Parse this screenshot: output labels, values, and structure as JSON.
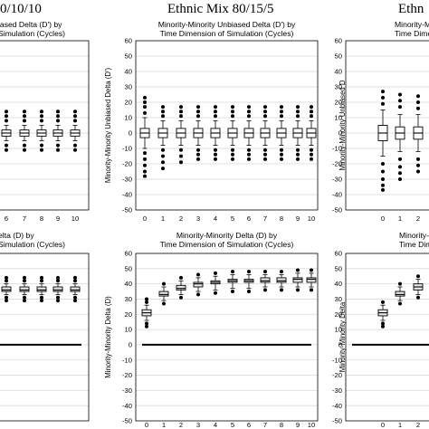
{
  "section_titles": [
    "0/10/10",
    "Ethnic Mix 80/15/5",
    "Ethn"
  ],
  "chart_data": [
    {
      "type": "box",
      "title_lines": [
        "iased Delta (D') by",
        "Simulation (Cycles)"
      ],
      "ylabel": "",
      "ylim": [
        -50,
        60
      ],
      "yticks": [],
      "categories": [
        "6",
        "7",
        "8",
        "9",
        "10"
      ],
      "reference_line": null,
      "grid": true,
      "boxes": [
        {
          "x": "6",
          "q1": -2,
          "median": 0,
          "q3": 2,
          "whisker_low": -5,
          "whisker_high": 5,
          "outliers_low": [
            -8,
            -11
          ],
          "outliers_high": [
            8,
            11,
            14
          ]
        },
        {
          "x": "7",
          "q1": -2,
          "median": 0,
          "q3": 2,
          "whisker_low": -5,
          "whisker_high": 5,
          "outliers_low": [
            -8,
            -11
          ],
          "outliers_high": [
            8,
            11,
            14
          ]
        },
        {
          "x": "8",
          "q1": -2,
          "median": 0,
          "q3": 2,
          "whisker_low": -5,
          "whisker_high": 5,
          "outliers_low": [
            -8,
            -11
          ],
          "outliers_high": [
            8,
            11,
            14
          ]
        },
        {
          "x": "9",
          "q1": -2,
          "median": 0,
          "q3": 2,
          "whisker_low": -5,
          "whisker_high": 5,
          "outliers_low": [
            -8,
            -11
          ],
          "outliers_high": [
            8,
            11,
            14
          ]
        },
        {
          "x": "10",
          "q1": -2,
          "median": 0,
          "q3": 2,
          "whisker_low": -5,
          "whisker_high": 5,
          "outliers_low": [
            -8,
            -11
          ],
          "outliers_high": [
            8,
            11,
            14
          ]
        }
      ]
    },
    {
      "type": "box",
      "title_lines": [
        "Minority-Minority Unbiased Delta (D') by",
        "Time Dimension of Simulation (Cycles)"
      ],
      "ylabel": "Minority-Minority Unbiased Delta (D')",
      "ylim": [
        -50,
        60
      ],
      "yticks": [
        60,
        50,
        40,
        30,
        20,
        10,
        0,
        -10,
        -20,
        -30,
        -40,
        -50
      ],
      "categories": [
        "0",
        "1",
        "2",
        "3",
        "4",
        "5",
        "6",
        "7",
        "8",
        "9",
        "10"
      ],
      "reference_line": null,
      "grid": true,
      "boxes": [
        {
          "x": "0",
          "q1": -3,
          "median": 0,
          "q3": 3,
          "whisker_low": -10,
          "whisker_high": 10,
          "outliers_low": [
            -13,
            -17,
            -21,
            -25,
            -28
          ],
          "outliers_high": [
            13,
            17,
            20,
            23
          ]
        },
        {
          "x": "1",
          "q1": -3,
          "median": 0,
          "q3": 3,
          "whisker_low": -8,
          "whisker_high": 8,
          "outliers_low": [
            -11,
            -15,
            -19,
            -23
          ],
          "outliers_high": [
            11,
            14,
            17
          ]
        },
        {
          "x": "2",
          "q1": -3,
          "median": 0,
          "q3": 3,
          "whisker_low": -8,
          "whisker_high": 8,
          "outliers_low": [
            -11,
            -15,
            -19
          ],
          "outliers_high": [
            11,
            14,
            17
          ]
        },
        {
          "x": "3",
          "q1": -3,
          "median": 0,
          "q3": 3,
          "whisker_low": -8,
          "whisker_high": 8,
          "outliers_low": [
            -11,
            -14,
            -17
          ],
          "outliers_high": [
            11,
            14,
            17
          ]
        },
        {
          "x": "4",
          "q1": -3,
          "median": 0,
          "q3": 3,
          "whisker_low": -8,
          "whisker_high": 8,
          "outliers_low": [
            -11,
            -14,
            -17
          ],
          "outliers_high": [
            11,
            14,
            17
          ]
        },
        {
          "x": "5",
          "q1": -3,
          "median": 0,
          "q3": 3,
          "whisker_low": -8,
          "whisker_high": 8,
          "outliers_low": [
            -11,
            -14,
            -17
          ],
          "outliers_high": [
            11,
            14,
            17
          ]
        },
        {
          "x": "6",
          "q1": -3,
          "median": 0,
          "q3": 3,
          "whisker_low": -8,
          "whisker_high": 8,
          "outliers_low": [
            -11,
            -14,
            -17
          ],
          "outliers_high": [
            11,
            14,
            17
          ]
        },
        {
          "x": "7",
          "q1": -3,
          "median": 0,
          "q3": 3,
          "whisker_low": -8,
          "whisker_high": 8,
          "outliers_low": [
            -11,
            -14,
            -17
          ],
          "outliers_high": [
            11,
            14,
            17
          ]
        },
        {
          "x": "8",
          "q1": -3,
          "median": 0,
          "q3": 3,
          "whisker_low": -8,
          "whisker_high": 8,
          "outliers_low": [
            -11,
            -14,
            -17
          ],
          "outliers_high": [
            11,
            14,
            17
          ]
        },
        {
          "x": "9",
          "q1": -3,
          "median": 0,
          "q3": 3,
          "whisker_low": -8,
          "whisker_high": 8,
          "outliers_low": [
            -11,
            -14,
            -17
          ],
          "outliers_high": [
            11,
            14,
            17
          ]
        },
        {
          "x": "10",
          "q1": -3,
          "median": 0,
          "q3": 3,
          "whisker_low": -8,
          "whisker_high": 8,
          "outliers_low": [
            -11,
            -14,
            -17
          ],
          "outliers_high": [
            11,
            14,
            17
          ]
        }
      ]
    },
    {
      "type": "box",
      "title_lines": [
        "Minority-Minority Unbias",
        "Time Dimension of Simu"
      ],
      "ylabel": "Minority-Minority Unbiased D",
      "ylim": [
        -50,
        60
      ],
      "yticks": [
        60,
        50,
        40,
        30,
        20,
        10,
        0,
        -10,
        -20,
        -30,
        -40,
        -50
      ],
      "categories": [
        "0",
        "1",
        "2"
      ],
      "reference_line": null,
      "grid": true,
      "boxes": [
        {
          "x": "0",
          "q1": -5,
          "median": 0,
          "q3": 5,
          "whisker_low": -15,
          "whisker_high": 15,
          "outliers_low": [
            -20,
            -25,
            -30,
            -34,
            -37
          ],
          "outliers_high": [
            19,
            23,
            27
          ]
        },
        {
          "x": "1",
          "q1": -4,
          "median": 0,
          "q3": 4,
          "whisker_low": -12,
          "whisker_high": 12,
          "outliers_low": [
            -17,
            -22,
            -26,
            -30
          ],
          "outliers_high": [
            17,
            21,
            25
          ]
        },
        {
          "x": "2",
          "q1": -4,
          "median": 0,
          "q3": 4,
          "whisker_low": -12,
          "whisker_high": 12,
          "outliers_low": [
            -17,
            -21,
            -25
          ],
          "outliers_high": [
            16,
            20,
            24
          ]
        }
      ]
    },
    {
      "type": "box",
      "title_lines": [
        "elta (D) by",
        "Simulation (Cycles)"
      ],
      "ylabel": "",
      "ylim": [
        -50,
        60
      ],
      "yticks": [],
      "categories": [],
      "reference_line": 0,
      "grid": true,
      "boxes": [
        {
          "x": "6",
          "q1": 35,
          "median": 36,
          "q3": 38,
          "whisker_low": 33,
          "whisker_high": 40,
          "outliers_low": [
            31,
            29
          ],
          "outliers_high": [
            42,
            44
          ]
        },
        {
          "x": "7",
          "q1": 35,
          "median": 36,
          "q3": 38,
          "whisker_low": 33,
          "whisker_high": 40,
          "outliers_low": [
            31,
            29
          ],
          "outliers_high": [
            42,
            44
          ]
        },
        {
          "x": "8",
          "q1": 35,
          "median": 36,
          "q3": 38,
          "whisker_low": 33,
          "whisker_high": 40,
          "outliers_low": [
            31,
            29
          ],
          "outliers_high": [
            42,
            44
          ]
        },
        {
          "x": "9",
          "q1": 35,
          "median": 36,
          "q3": 38,
          "whisker_low": 33,
          "whisker_high": 40,
          "outliers_low": [
            31,
            29
          ],
          "outliers_high": [
            42,
            44
          ]
        },
        {
          "x": "10",
          "q1": 35,
          "median": 36,
          "q3": 38,
          "whisker_low": 33,
          "whisker_high": 40,
          "outliers_low": [
            31,
            29
          ],
          "outliers_high": [
            42,
            44
          ]
        }
      ]
    },
    {
      "type": "box",
      "title_lines": [
        "Minority-Minority Delta (D) by",
        "Time Dimension of Simulation (Cycles)"
      ],
      "ylabel": "Minority-Minority Delta (D)",
      "ylim": [
        -50,
        60
      ],
      "yticks": [
        60,
        50,
        40,
        30,
        20,
        10,
        0,
        -10,
        -20,
        -30,
        -40,
        -50
      ],
      "categories": [
        "0",
        "1",
        "2",
        "3",
        "4",
        "5",
        "6",
        "7",
        "8",
        "9",
        "10"
      ],
      "reference_line": 0,
      "grid": true,
      "boxes": [
        {
          "x": "0",
          "q1": 19,
          "median": 21,
          "q3": 23,
          "whisker_low": 16,
          "whisker_high": 26,
          "outliers_low": [
            14,
            12
          ],
          "outliers_high": [
            28,
            30
          ]
        },
        {
          "x": "1",
          "q1": 32,
          "median": 33,
          "q3": 35,
          "whisker_low": 29,
          "whisker_high": 38,
          "outliers_low": [
            27
          ],
          "outliers_high": [
            40
          ]
        },
        {
          "x": "2",
          "q1": 36,
          "median": 37,
          "q3": 39,
          "whisker_low": 33,
          "whisker_high": 42,
          "outliers_low": [
            31
          ],
          "outliers_high": [
            44
          ]
        },
        {
          "x": "3",
          "q1": 38,
          "median": 40,
          "q3": 41,
          "whisker_low": 35,
          "whisker_high": 44,
          "outliers_low": [
            33
          ],
          "outliers_high": [
            46
          ]
        },
        {
          "x": "4",
          "q1": 40,
          "median": 41,
          "q3": 42,
          "whisker_low": 36,
          "whisker_high": 45,
          "outliers_low": [
            34
          ],
          "outliers_high": [
            47
          ]
        },
        {
          "x": "5",
          "q1": 41,
          "median": 42,
          "q3": 43,
          "whisker_low": 37,
          "whisker_high": 46,
          "outliers_low": [
            35
          ],
          "outliers_high": [
            48
          ]
        },
        {
          "x": "6",
          "q1": 41,
          "median": 42,
          "q3": 43,
          "whisker_low": 37,
          "whisker_high": 46,
          "outliers_low": [
            35
          ],
          "outliers_high": [
            48
          ]
        },
        {
          "x": "7",
          "q1": 41,
          "median": 42,
          "q3": 44,
          "whisker_low": 38,
          "whisker_high": 46,
          "outliers_low": [
            36
          ],
          "outliers_high": [
            48
          ]
        },
        {
          "x": "8",
          "q1": 41,
          "median": 42,
          "q3": 44,
          "whisker_low": 38,
          "whisker_high": 46,
          "outliers_low": [
            36
          ],
          "outliers_high": [
            48
          ]
        },
        {
          "x": "9",
          "q1": 41,
          "median": 43,
          "q3": 44,
          "whisker_low": 38,
          "whisker_high": 47,
          "outliers_low": [
            36
          ],
          "outliers_high": [
            49
          ]
        },
        {
          "x": "10",
          "q1": 41,
          "median": 43,
          "q3": 44,
          "whisker_low": 38,
          "whisker_high": 47,
          "outliers_low": [
            36
          ],
          "outliers_high": [
            49
          ]
        }
      ]
    },
    {
      "type": "box",
      "title_lines": [
        "Minority-Minority Delt",
        "Time Dimension of Simu"
      ],
      "ylabel": "Minority-Minority Delta",
      "ylim": [
        -50,
        60
      ],
      "yticks": [
        60,
        50,
        40,
        30,
        20,
        10,
        0,
        -10,
        -20,
        -30,
        -40,
        -50
      ],
      "categories": [
        "0",
        "1",
        "2"
      ],
      "reference_line": 0,
      "grid": true,
      "boxes": [
        {
          "x": "0",
          "q1": 19,
          "median": 21,
          "q3": 23,
          "whisker_low": 16,
          "whisker_high": 26,
          "outliers_low": [
            14,
            12
          ],
          "outliers_high": [
            28
          ]
        },
        {
          "x": "1",
          "q1": 32,
          "median": 33,
          "q3": 35,
          "whisker_low": 29,
          "whisker_high": 38,
          "outliers_low": [
            27
          ],
          "outliers_high": [
            40
          ]
        },
        {
          "x": "2",
          "q1": 36,
          "median": 38,
          "q3": 40,
          "whisker_low": 33,
          "whisker_high": 43,
          "outliers_low": [
            31
          ],
          "outliers_high": [
            45
          ]
        }
      ]
    }
  ]
}
